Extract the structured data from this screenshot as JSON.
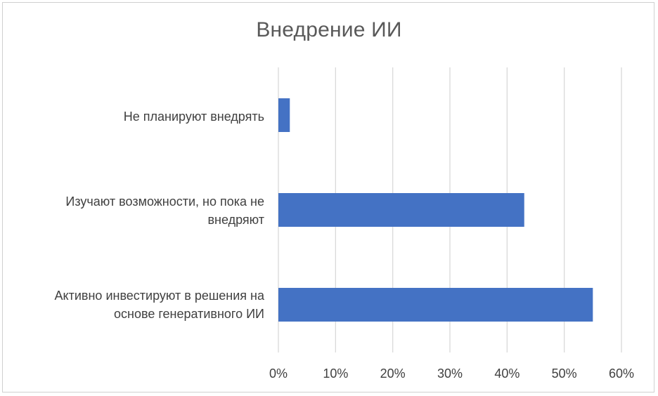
{
  "chart_data": {
    "type": "bar",
    "orientation": "horizontal",
    "title": "Внедрение ИИ",
    "categories": [
      "Не планируют внедрять",
      "Изучают возможности, но пока не внедряют",
      "Активно инвестируют в решения на основе генеративного ИИ"
    ],
    "category_lines": [
      [
        "Не планируют внедрять"
      ],
      [
        "Изучают возможности, но пока не",
        "внедряют"
      ],
      [
        "Активно инвестируют в решения на",
        "основе генеративного ИИ"
      ]
    ],
    "values": [
      2,
      43,
      55
    ],
    "unit": "%",
    "xlim": [
      0,
      60
    ],
    "x_ticks": [
      "0%",
      "10%",
      "20%",
      "30%",
      "40%",
      "50%",
      "60%"
    ],
    "grid": true,
    "legend": "none",
    "bar_color": "#4472C4",
    "grid_color": "#d9d9d9"
  }
}
